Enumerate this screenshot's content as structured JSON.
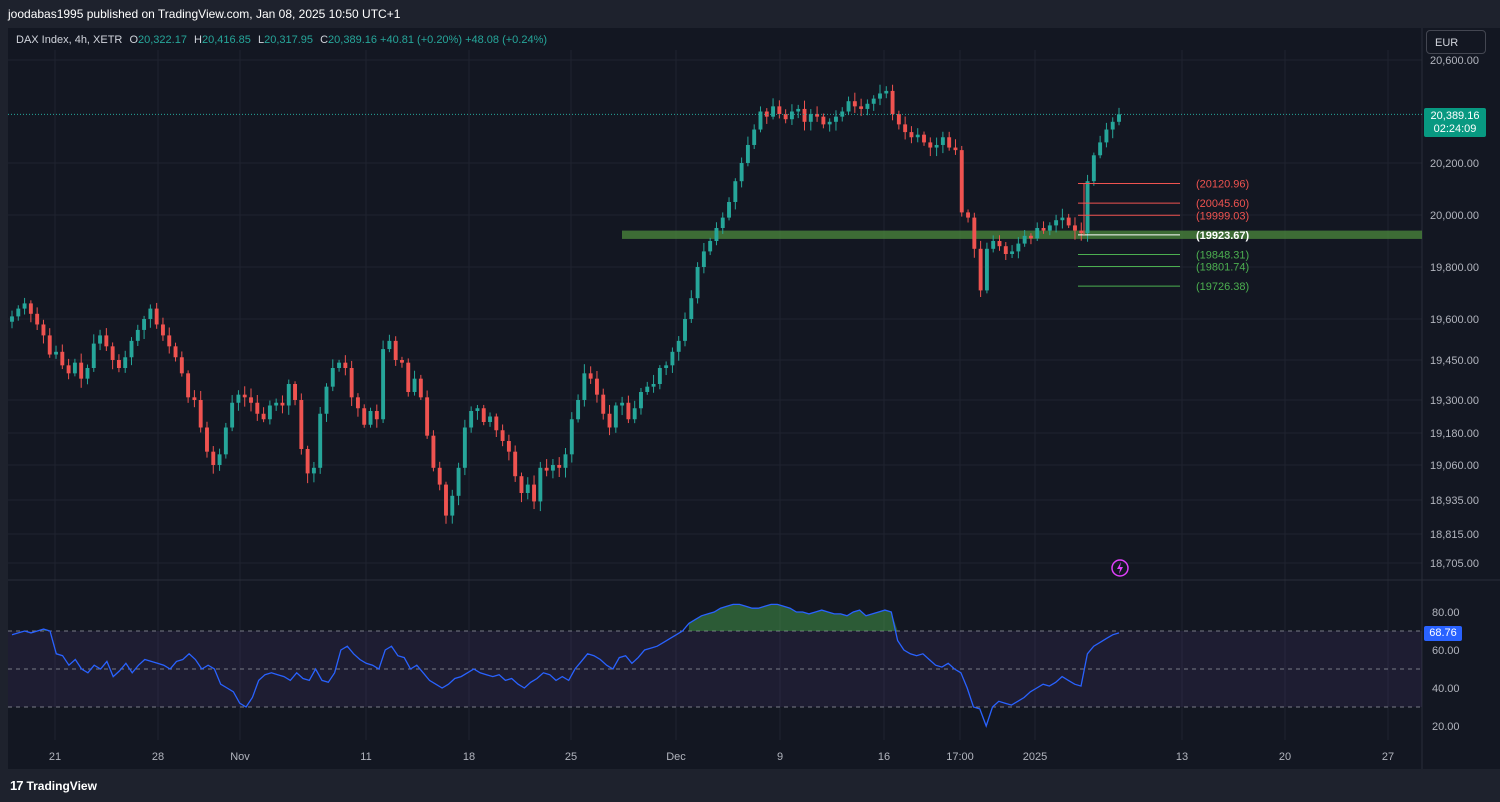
{
  "header": {
    "publish_text": "joodabas1995 published on TradingView.com, Jan 08, 2025 10:50 UTC+1",
    "symbol": "DAX Index, 4h, XETR",
    "o_label": "O",
    "o_value": "20,322.17",
    "h_label": "H",
    "h_value": "20,416.85",
    "l_label": "L",
    "l_value": "20,317.95",
    "c_label": "C",
    "c_value": "20,389.16",
    "change": "+40.81 (+0.20%)",
    "change2": "+48.08 (+0.24%)",
    "currency": "EUR"
  },
  "last_price": {
    "value": "20,389.16",
    "countdown": "02:24:09"
  },
  "rsi_value": "68.76",
  "footer": {
    "logo_text": "TradingView",
    "logo_mark": "17"
  },
  "colors": {
    "up": "#26a69a",
    "down": "#ef5350",
    "background": "#131722",
    "rsi_line": "#2962ff",
    "zone": "#4c8a3c",
    "grid": "#1f2330"
  },
  "chart_data": {
    "type": "candlestick",
    "price_axis": {
      "ticks": [
        {
          "label": "20,600.00",
          "value": 20600
        },
        {
          "label": "20,200.00",
          "value": 20200
        },
        {
          "label": "20,000.00",
          "value": 20000
        },
        {
          "label": "19,800.00",
          "value": 19800
        },
        {
          "label": "19,600.00",
          "value": 19600
        },
        {
          "label": "19,450.00",
          "value": 19450
        },
        {
          "label": "19,300.00",
          "value": 19300
        },
        {
          "label": "19,180.00",
          "value": 19180
        },
        {
          "label": "19,060.00",
          "value": 19060
        },
        {
          "label": "18,935.00",
          "value": 18935
        },
        {
          "label": "18,815.00",
          "value": 18815
        },
        {
          "label": "18,705.00",
          "value": 18705
        }
      ]
    },
    "time_axis": [
      "21",
      "28",
      "Nov",
      "11",
      "18",
      "25",
      "Dec",
      "9",
      "16",
      "17:00",
      "2025",
      "13",
      "20",
      "27"
    ],
    "close_series": [
      19610,
      19640,
      19660,
      19620,
      19580,
      19540,
      19470,
      19480,
      19430,
      19400,
      19440,
      19380,
      19420,
      19510,
      19540,
      19500,
      19450,
      19420,
      19460,
      19520,
      19560,
      19600,
      19640,
      19580,
      19540,
      19500,
      19460,
      19400,
      19310,
      19300,
      19200,
      19110,
      19060,
      19100,
      19200,
      19290,
      19320,
      19310,
      19290,
      19250,
      19230,
      19280,
      19290,
      19280,
      19360,
      19300,
      19120,
      19030,
      19050,
      19250,
      19350,
      19420,
      19440,
      19420,
      19310,
      19270,
      19210,
      19260,
      19230,
      19490,
      19520,
      19450,
      19440,
      19330,
      19380,
      19310,
      19170,
      19050,
      18990,
      18880,
      18950,
      19050,
      19200,
      19260,
      19270,
      19220,
      19240,
      19190,
      19150,
      19110,
      19020,
      18960,
      18990,
      18930,
      19050,
      19040,
      19060,
      19050,
      19100,
      19230,
      19300,
      19400,
      19380,
      19320,
      19250,
      19200,
      19280,
      19290,
      19230,
      19270,
      19330,
      19350,
      19360,
      19420,
      19430,
      19480,
      19520,
      19600,
      19680,
      19800,
      19860,
      19900,
      19950,
      19990,
      20050,
      20130,
      20200,
      20270,
      20330,
      20400,
      20380,
      20420,
      20390,
      20370,
      20400,
      20410,
      20360,
      20390,
      20380,
      20350,
      20360,
      20380,
      20400,
      20440,
      20420,
      20410,
      20430,
      20450,
      20470,
      20480,
      20390,
      20350,
      20320,
      20300,
      20310,
      20280,
      20260,
      20270,
      20300,
      20260,
      20250,
      20010,
      19990,
      19870,
      19710,
      19870,
      19900,
      19880,
      19850,
      19860,
      19890,
      19920,
      19910,
      19950,
      19940,
      19960,
      19980,
      19990,
      19960,
      19940,
      19930,
      20130,
      20230,
      20280,
      20330,
      20360,
      20389
    ],
    "levels": [
      {
        "label": "(20120.96)",
        "value": 20120.96,
        "color": "#ef5350"
      },
      {
        "label": "(20045.60)",
        "value": 20045.6,
        "color": "#ef5350"
      },
      {
        "label": "(19999.03)",
        "value": 19999.03,
        "color": "#ef5350"
      },
      {
        "label": "(19923.67)",
        "value": 19923.67,
        "color": "#ffffff"
      },
      {
        "label": "(19848.31)",
        "value": 19848.31,
        "color": "#4caf50"
      },
      {
        "label": "(19801.74)",
        "value": 19801.74,
        "color": "#4caf50"
      },
      {
        "label": "(19726.38)",
        "value": 19726.38,
        "color": "#4caf50"
      }
    ],
    "zone": {
      "low": 19908,
      "high": 19940
    },
    "rsi": {
      "axis_ticks": [
        "80.00",
        "60.00",
        "40.00",
        "20.00"
      ],
      "upper": 70,
      "middle": 50,
      "lower": 30,
      "values": [
        68,
        69,
        70,
        69,
        70,
        71,
        70,
        58,
        57,
        52,
        55,
        50,
        48,
        52,
        50,
        54,
        46,
        49,
        53,
        48,
        52,
        55,
        54,
        53,
        52,
        50,
        54,
        55,
        58,
        55,
        50,
        52,
        50,
        42,
        40,
        38,
        32,
        30,
        35,
        44,
        47,
        48,
        47,
        46,
        44,
        48,
        45,
        44,
        50,
        44,
        43,
        48,
        60,
        62,
        58,
        55,
        53,
        52,
        50,
        60,
        62,
        57,
        56,
        50,
        52,
        48,
        44,
        42,
        40,
        42,
        45,
        46,
        48,
        50,
        48,
        47,
        46,
        47,
        44,
        45,
        42,
        40,
        43,
        45,
        48,
        47,
        44,
        46,
        44,
        50,
        54,
        58,
        57,
        55,
        52,
        50,
        56,
        57,
        53,
        56,
        60,
        61,
        62,
        64,
        66,
        68,
        70,
        74,
        76,
        78,
        79,
        80,
        82,
        83,
        84,
        84,
        83,
        82,
        82,
        83,
        84,
        84,
        83,
        82,
        80,
        80,
        79,
        80,
        81,
        80,
        79,
        79,
        78,
        80,
        81,
        78,
        79,
        80,
        81,
        80,
        65,
        60,
        58,
        57,
        58,
        55,
        52,
        51,
        53,
        50,
        48,
        40,
        30,
        29,
        20,
        30,
        33,
        32,
        31,
        33,
        35,
        38,
        40,
        42,
        41,
        43,
        46,
        44,
        42,
        41,
        58,
        62,
        64,
        66,
        68,
        69
      ]
    }
  }
}
